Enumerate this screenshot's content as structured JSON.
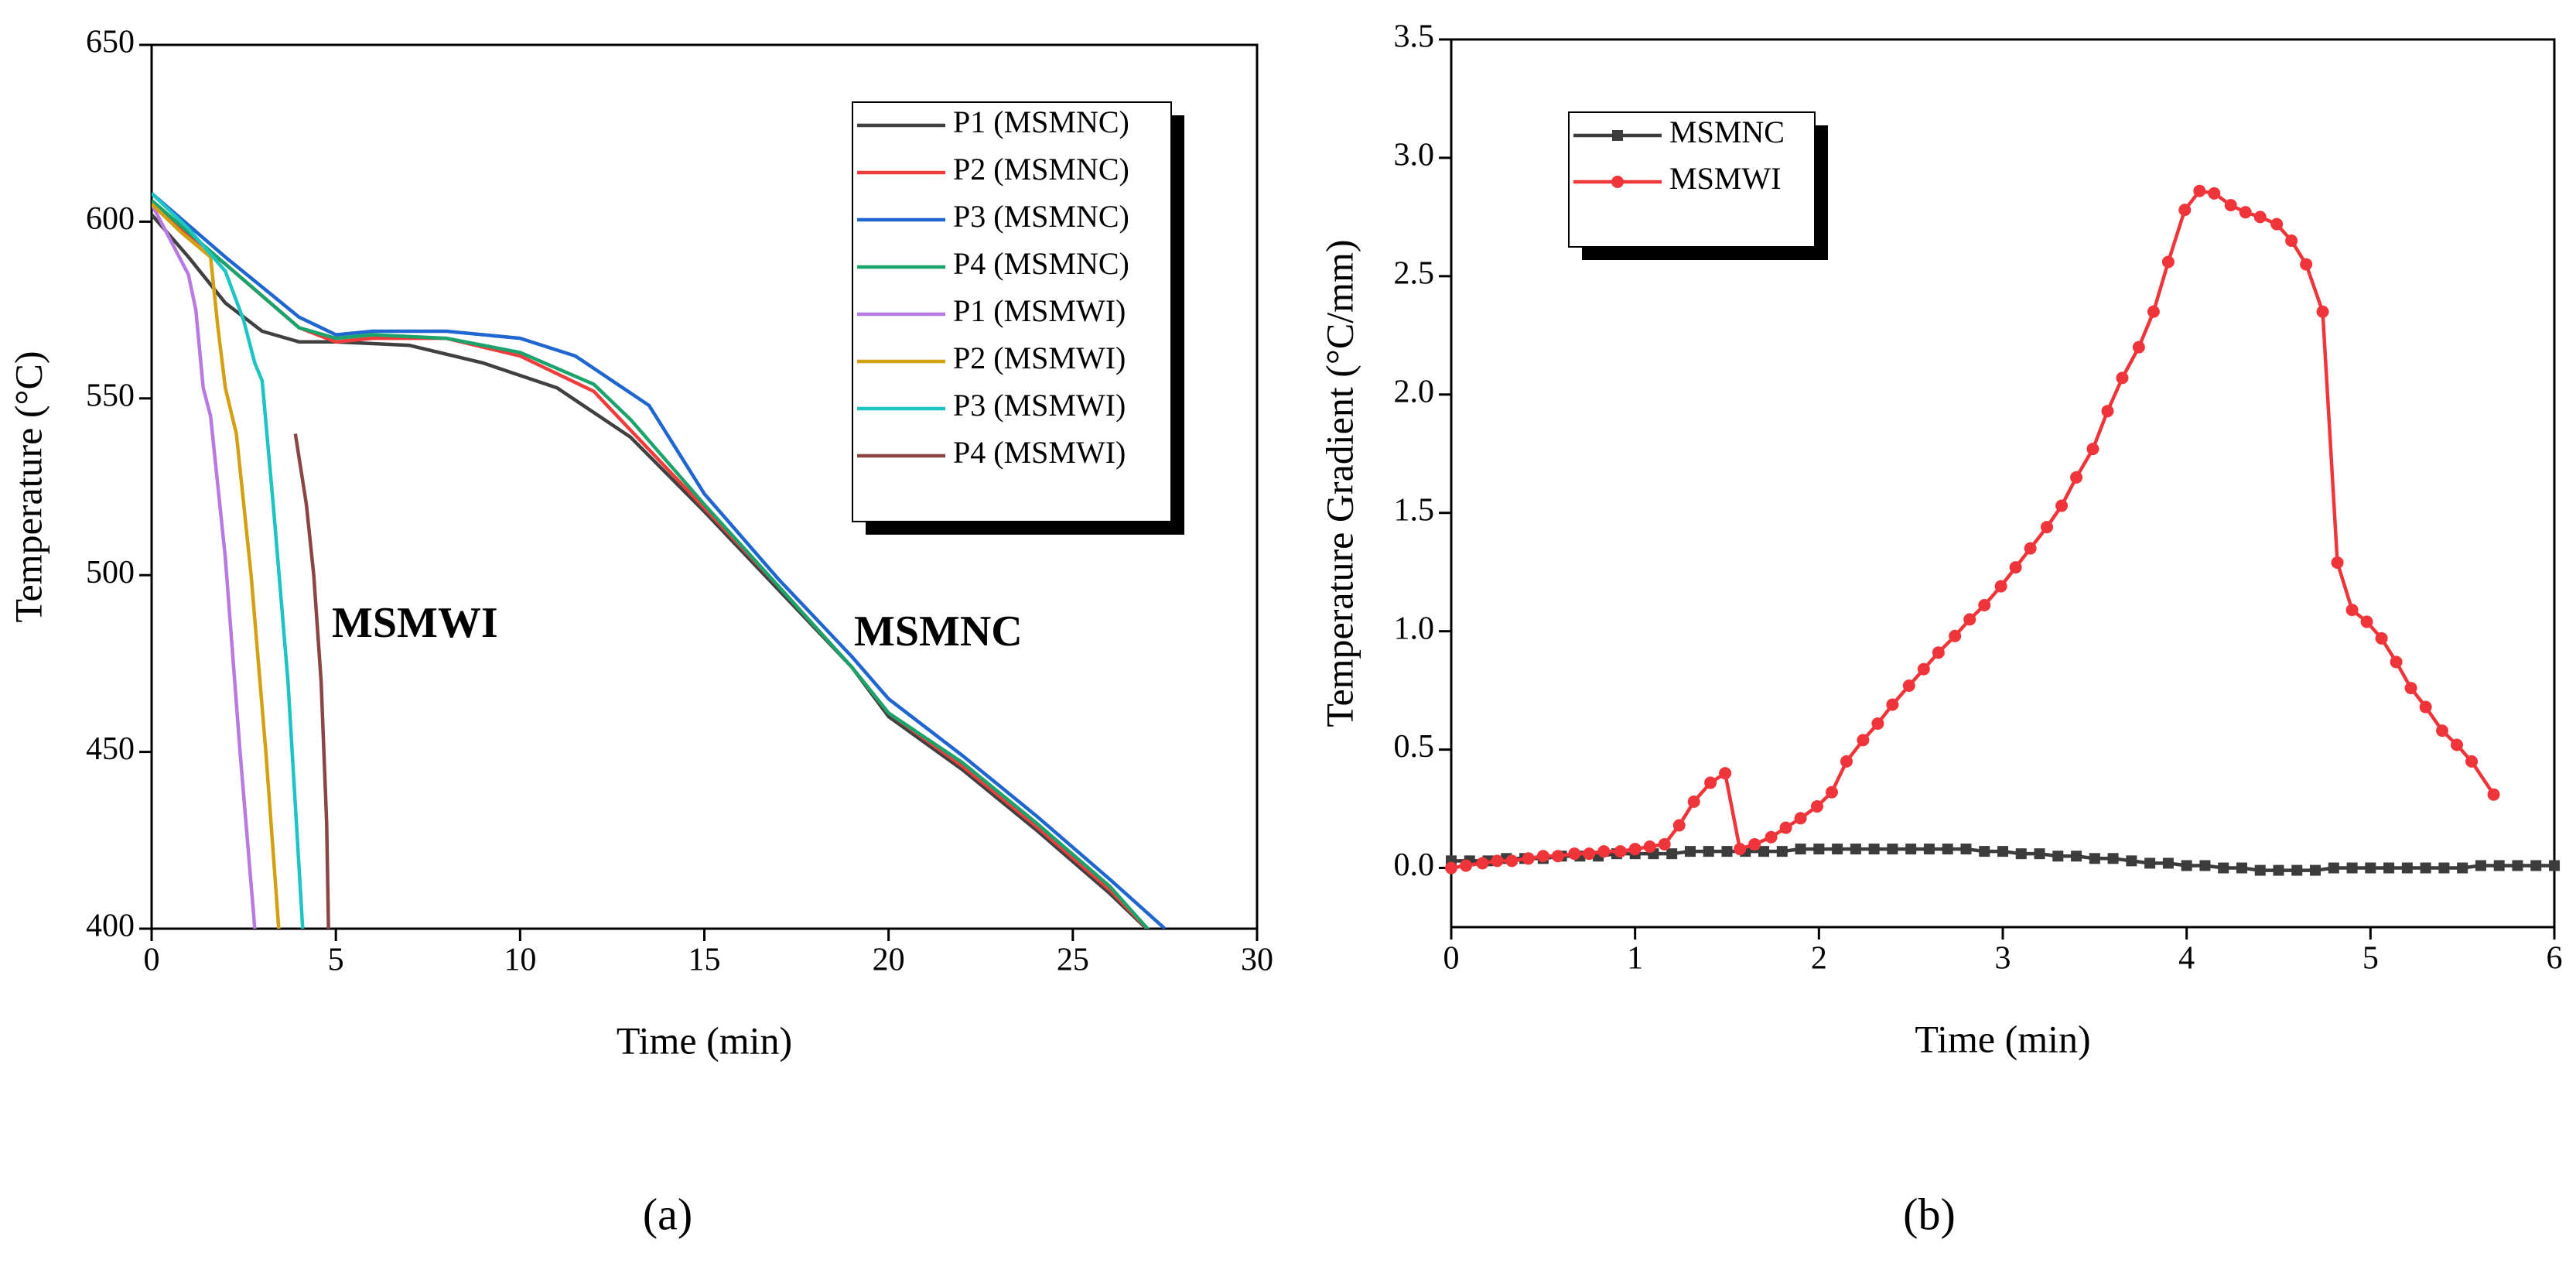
{
  "chart_data": [
    {
      "type": "line",
      "x_label": "Time (min)",
      "y_label": "Temperature (°C)",
      "caption": "(a)",
      "xlim": [
        0,
        30
      ],
      "xticks": [
        0,
        5,
        10,
        15,
        20,
        25,
        30
      ],
      "ylim": [
        400,
        650
      ],
      "yticks": [
        400,
        450,
        500,
        550,
        600,
        650
      ],
      "legend": "upper right",
      "annotations": [
        "MSMWI",
        "MSMNC"
      ],
      "series": [
        {
          "name": "P1 (MSMNC)",
          "color": "#404040",
          "x": [
            0,
            1,
            2,
            3,
            4,
            5,
            7,
            9,
            11,
            13,
            15,
            17,
            19,
            20,
            22,
            24,
            26,
            27.2
          ],
          "values": [
            602,
            590,
            577,
            569,
            566,
            566,
            565,
            560,
            553,
            539,
            518,
            496,
            474,
            460,
            445,
            428,
            410,
            398
          ]
        },
        {
          "name": "P2 (MSMNC)",
          "color": "#f03c3c",
          "x": [
            0,
            2,
            4,
            5,
            6,
            8,
            10,
            12,
            13,
            15,
            17,
            19,
            20,
            22,
            24,
            26,
            27.2
          ],
          "values": [
            605,
            588,
            570,
            566,
            567,
            567,
            562,
            552,
            541,
            519,
            497,
            474,
            461,
            446,
            429,
            411,
            398
          ]
        },
        {
          "name": "P3 (MSMNC)",
          "color": "#1f66d1",
          "x": [
            0,
            2,
            4,
            5,
            6,
            8,
            10,
            11.5,
            12.5,
            13.5,
            15,
            17,
            19,
            20,
            22,
            24,
            26,
            27.5
          ],
          "values": [
            608,
            590,
            573,
            568,
            569,
            569,
            567,
            562,
            555,
            548,
            523,
            499,
            477,
            465,
            449,
            432,
            414,
            400
          ]
        },
        {
          "name": "P4 (MSMNC)",
          "color": "#1aa36a",
          "x": [
            0,
            2,
            4,
            5,
            6,
            8,
            10,
            12,
            13,
            15,
            17,
            19,
            20,
            22,
            24,
            26,
            27.2
          ],
          "values": [
            606,
            588,
            570,
            567,
            568,
            567,
            563,
            554,
            544,
            520,
            497,
            474,
            461,
            447,
            430,
            412,
            398
          ]
        },
        {
          "name": "P1 (MSMWI)",
          "color": "#b77ae0",
          "x": [
            0,
            0.5,
            1,
            1.2,
            1.4,
            1.6,
            2,
            2.4,
            2.8
          ],
          "values": [
            605,
            595,
            585,
            575,
            553,
            545,
            505,
            450,
            400
          ]
        },
        {
          "name": "P2 (MSMWI)",
          "color": "#d4a012",
          "x": [
            0,
            0.8,
            1.6,
            1.8,
            2.0,
            2.3,
            2.7,
            3.1,
            3.45
          ],
          "values": [
            605,
            597,
            590,
            570,
            553,
            540,
            500,
            450,
            400
          ]
        },
        {
          "name": "P3 (MSMWI)",
          "color": "#1cc4c4",
          "x": [
            0,
            1,
            2,
            2.5,
            2.8,
            3.0,
            3.3,
            3.7,
            4.1
          ],
          "values": [
            608,
            598,
            586,
            572,
            560,
            555,
            520,
            470,
            400
          ]
        },
        {
          "name": "P4 (MSMWI)",
          "color": "#8b4545",
          "x": [
            3.9,
            4.2,
            4.4,
            4.6,
            4.75,
            4.8
          ],
          "values": [
            540,
            520,
            500,
            470,
            430,
            400
          ]
        }
      ]
    },
    {
      "type": "line",
      "x_label": "Time (min)",
      "y_label": "Temperature Gradient (°C/mm)",
      "caption": "(b)",
      "xlim": [
        0,
        6
      ],
      "xticks": [
        0,
        1,
        2,
        3,
        4,
        5,
        6
      ],
      "ylim": [
        -0.25,
        3.5
      ],
      "yticks": [
        {
          "value": 0,
          "label": "0.0"
        },
        0.5,
        {
          "value": 1,
          "label": "1.0"
        },
        1.5,
        {
          "value": 2,
          "label": "2.0"
        },
        2.5,
        {
          "value": 3,
          "label": "3.0"
        },
        3.5
      ],
      "legend": "upper left",
      "series": [
        {
          "name": "MSMNC",
          "color": "#3c3c3c",
          "marker": "square",
          "x": [
            0,
            0.1,
            0.2,
            0.3,
            0.4,
            0.5,
            0.6,
            0.7,
            0.8,
            0.9,
            1.0,
            1.1,
            1.2,
            1.3,
            1.4,
            1.5,
            1.6,
            1.7,
            1.8,
            1.9,
            2.0,
            2.1,
            2.2,
            2.3,
            2.4,
            2.5,
            2.6,
            2.7,
            2.8,
            2.9,
            3.0,
            3.1,
            3.2,
            3.3,
            3.4,
            3.5,
            3.6,
            3.7,
            3.8,
            3.9,
            4.0,
            4.1,
            4.2,
            4.3,
            4.4,
            4.5,
            4.6,
            4.7,
            4.8,
            4.9,
            5.0,
            5.1,
            5.2,
            5.3,
            5.4,
            5.5,
            5.6,
            5.7,
            5.8,
            5.9,
            6.0
          ],
          "values": [
            0.03,
            0.03,
            0.03,
            0.04,
            0.04,
            0.04,
            0.05,
            0.05,
            0.05,
            0.06,
            0.06,
            0.06,
            0.06,
            0.07,
            0.07,
            0.07,
            0.07,
            0.07,
            0.07,
            0.08,
            0.08,
            0.08,
            0.08,
            0.08,
            0.08,
            0.08,
            0.08,
            0.08,
            0.08,
            0.07,
            0.07,
            0.06,
            0.06,
            0.05,
            0.05,
            0.04,
            0.04,
            0.03,
            0.02,
            0.02,
            0.01,
            0.01,
            0.0,
            0.0,
            -0.01,
            -0.01,
            -0.01,
            -0.01,
            0.0,
            0.0,
            0.0,
            0.0,
            0.0,
            0.0,
            0.0,
            0.0,
            0.01,
            0.01,
            0.01,
            0.01,
            0.01
          ]
        },
        {
          "name": "MSMWI",
          "color": "#f0353a",
          "marker": "circle",
          "x": [
            0,
            0.08,
            0.17,
            0.25,
            0.33,
            0.42,
            0.5,
            0.58,
            0.67,
            0.75,
            0.83,
            0.92,
            1.0,
            1.08,
            1.16,
            1.24,
            1.32,
            1.41,
            1.49,
            1.57,
            1.65,
            1.74,
            1.82,
            1.9,
            1.99,
            2.07,
            2.15,
            2.24,
            2.32,
            2.4,
            2.49,
            2.57,
            2.65,
            2.74,
            2.82,
            2.9,
            2.99,
            3.07,
            3.15,
            3.24,
            3.32,
            3.4,
            3.49,
            3.57,
            3.65,
            3.74,
            3.82,
            3.9,
            3.99,
            4.07,
            4.15,
            4.24,
            4.32,
            4.4,
            4.49,
            4.57,
            4.65,
            4.74,
            4.82,
            4.9,
            4.98,
            5.06,
            5.14,
            5.22,
            5.3,
            5.39,
            5.47,
            5.55,
            5.67
          ],
          "values": [
            0.0,
            0.01,
            0.02,
            0.03,
            0.03,
            0.04,
            0.05,
            0.05,
            0.06,
            0.06,
            0.07,
            0.07,
            0.08,
            0.09,
            0.1,
            0.18,
            0.28,
            0.36,
            0.4,
            0.08,
            0.1,
            0.13,
            0.17,
            0.21,
            0.26,
            0.32,
            0.45,
            0.54,
            0.61,
            0.69,
            0.77,
            0.84,
            0.91,
            0.98,
            1.05,
            1.11,
            1.19,
            1.27,
            1.35,
            1.44,
            1.53,
            1.65,
            1.77,
            1.93,
            2.07,
            2.2,
            2.35,
            2.56,
            2.78,
            2.86,
            2.85,
            2.8,
            2.77,
            2.75,
            2.72,
            2.65,
            2.55,
            2.35,
            1.29,
            1.09,
            1.04,
            0.97,
            0.87,
            0.76,
            0.68,
            0.58,
            0.52,
            0.45,
            0.31
          ]
        }
      ]
    }
  ]
}
